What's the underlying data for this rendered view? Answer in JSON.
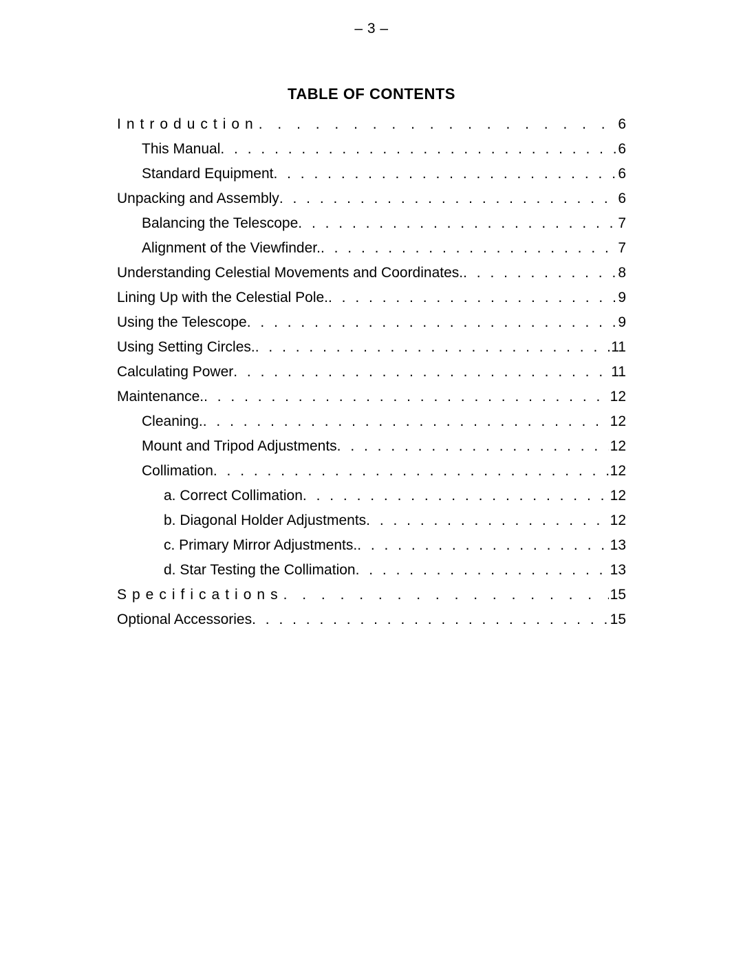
{
  "page_number_header": "– 3 –",
  "toc_heading": "TABLE OF CONTENTS",
  "toc": [
    {
      "title": "Introduction",
      "page": "6",
      "indent": 0,
      "spaced": true
    },
    {
      "title": "This Manual",
      "page": "6",
      "indent": 1,
      "spaced": false
    },
    {
      "title": "Standard Equipment",
      "page": "6",
      "indent": 1,
      "spaced": false
    },
    {
      "title": "Unpacking and Assembly",
      "page": "6",
      "indent": 0,
      "spaced": false
    },
    {
      "title": "Balancing the Telescope",
      "page": "7",
      "indent": 1,
      "spaced": false
    },
    {
      "title": "Alignment of the Viewfinder.",
      "page": "7",
      "indent": 1,
      "spaced": false
    },
    {
      "title": "Understanding Celestial Movements and Coordinates.",
      "page": "8",
      "indent": 0,
      "spaced": false
    },
    {
      "title": "Lining Up with the Celestial Pole.",
      "page": "9",
      "indent": 0,
      "spaced": false
    },
    {
      "title": "Using the Telescope",
      "page": "9",
      "indent": 0,
      "spaced": false
    },
    {
      "title": "Using Setting Circles.",
      "page": "11",
      "indent": 0,
      "spaced": false
    },
    {
      "title": "Calculating Power",
      "page": "11",
      "indent": 0,
      "spaced": false
    },
    {
      "title": "Maintenance.",
      "page": "12",
      "indent": 0,
      "spaced": false
    },
    {
      "title": "Cleaning.",
      "page": "12",
      "indent": 1,
      "spaced": false
    },
    {
      "title": "Mount and Tripod Adjustments",
      "page": "12",
      "indent": 1,
      "spaced": false
    },
    {
      "title": "Collimation",
      "page": "12",
      "indent": 1,
      "spaced": false
    },
    {
      "title": "a. Correct Collimation",
      "page": "12",
      "indent": 2,
      "spaced": false
    },
    {
      "title": "b. Diagonal Holder Adjustments",
      "page": "12",
      "indent": 2,
      "spaced": false
    },
    {
      "title": "c. Primary Mirror Adjustments.",
      "page": "13",
      "indent": 2,
      "spaced": false
    },
    {
      "title": "d. Star Testing the Collimation",
      "page": "13",
      "indent": 2,
      "spaced": false
    },
    {
      "title": "Specifications",
      "page": "15",
      "indent": 0,
      "spaced": true
    },
    {
      "title": "Optional Accessories",
      "page": "15",
      "indent": 0,
      "spaced": false
    }
  ]
}
